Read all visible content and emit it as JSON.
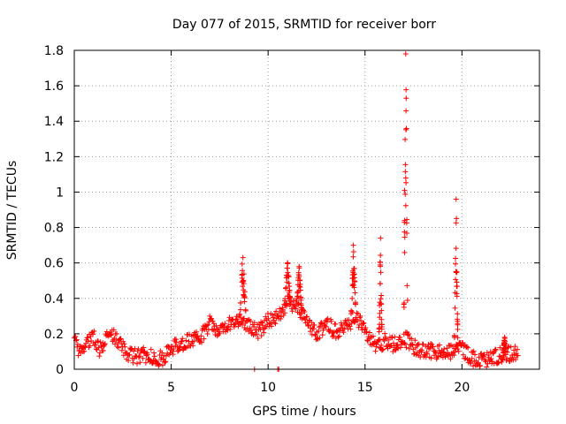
{
  "chart_data": {
    "type": "scatter",
    "title": "Day 077 of 2015, SRMTID for receiver borr",
    "xlabel": "GPS time / hours",
    "ylabel": "SRMTID / TECUs",
    "xlim": [
      0,
      24
    ],
    "ylim": [
      0,
      1.8
    ],
    "xticks": [
      "0",
      "5",
      "10",
      "15",
      "20"
    ],
    "yticks": [
      "0",
      "0.2",
      "0.4",
      "0.6",
      "0.8",
      "1",
      "1.2",
      "1.4",
      "1.6",
      "1.8"
    ],
    "marker": "plus",
    "grid": true,
    "colors": {
      "points": "#ff0000",
      "grid": "#a0a0a0",
      "axes": "#000000"
    },
    "series": [
      {
        "name": "borr",
        "trend": [
          [
            0.0,
            0.17
          ],
          [
            0.3,
            0.09
          ],
          [
            0.6,
            0.15
          ],
          [
            1.0,
            0.19
          ],
          [
            1.3,
            0.11
          ],
          [
            1.6,
            0.17
          ],
          [
            2.0,
            0.19
          ],
          [
            2.5,
            0.12
          ],
          [
            3.0,
            0.07
          ],
          [
            3.5,
            0.08
          ],
          [
            4.0,
            0.07
          ],
          [
            4.5,
            0.06
          ],
          [
            5.0,
            0.11
          ],
          [
            5.5,
            0.15
          ],
          [
            6.0,
            0.16
          ],
          [
            6.5,
            0.17
          ],
          [
            7.0,
            0.27
          ],
          [
            7.5,
            0.21
          ],
          [
            8.0,
            0.26
          ],
          [
            8.5,
            0.28
          ],
          [
            9.0,
            0.25
          ],
          [
            9.5,
            0.21
          ],
          [
            10.0,
            0.28
          ],
          [
            10.5,
            0.3
          ],
          [
            11.0,
            0.38
          ],
          [
            11.5,
            0.35
          ],
          [
            12.0,
            0.27
          ],
          [
            12.5,
            0.2
          ],
          [
            13.0,
            0.26
          ],
          [
            13.5,
            0.21
          ],
          [
            14.0,
            0.24
          ],
          [
            14.5,
            0.3
          ],
          [
            15.0,
            0.22
          ],
          [
            15.5,
            0.13
          ],
          [
            16.0,
            0.16
          ],
          [
            16.5,
            0.14
          ],
          [
            17.0,
            0.18
          ],
          [
            17.5,
            0.13
          ],
          [
            18.0,
            0.1
          ],
          [
            18.5,
            0.1
          ],
          [
            19.0,
            0.09
          ],
          [
            19.5,
            0.1
          ],
          [
            20.0,
            0.12
          ],
          [
            20.5,
            0.06
          ],
          [
            21.0,
            0.05
          ],
          [
            21.5,
            0.06
          ],
          [
            22.0,
            0.08
          ],
          [
            22.5,
            0.09
          ],
          [
            22.9,
            0.09
          ]
        ],
        "spikes": [
          {
            "x": 8.7,
            "peak": 0.63,
            "width": 0.35
          },
          {
            "x": 11.0,
            "peak": 0.6,
            "width": 0.3
          },
          {
            "x": 11.6,
            "peak": 0.58,
            "width": 0.25
          },
          {
            "x": 14.4,
            "peak": 0.7,
            "width": 0.25
          },
          {
            "x": 15.8,
            "peak": 0.74,
            "width": 0.15
          },
          {
            "x": 17.1,
            "peak": 1.78,
            "width": 0.2
          },
          {
            "x": 19.7,
            "peak": 0.96,
            "width": 0.18
          },
          {
            "x": 22.2,
            "peak": 0.18,
            "width": 0.15
          }
        ],
        "outliers": [
          [
            9.3,
            0.0
          ],
          [
            10.5,
            0.0
          ],
          [
            10.55,
            0.0
          ]
        ]
      }
    ]
  }
}
